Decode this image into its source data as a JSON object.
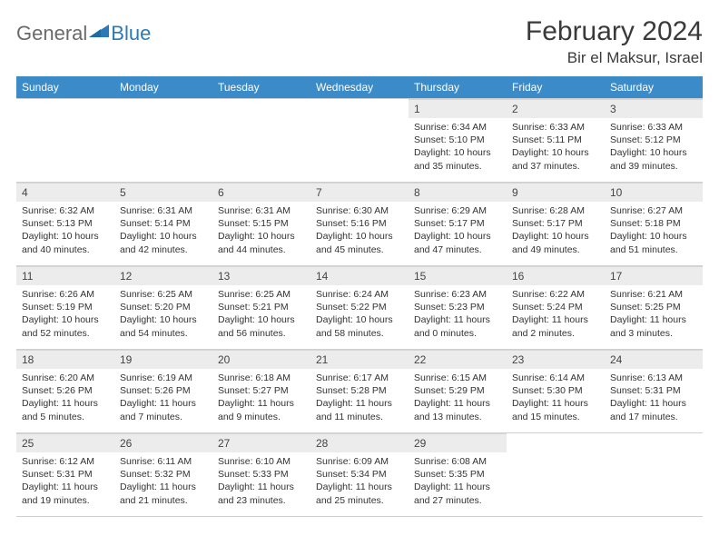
{
  "brand": {
    "part1": "General",
    "part2": "Blue"
  },
  "title": "February 2024",
  "location": "Bir el Maksur, Israel",
  "colors": {
    "header_bg": "#3b8bc8",
    "header_text": "#ffffff",
    "daynum_bg": "#ececec",
    "text": "#333333",
    "brand_gray": "#6a6a6a",
    "brand_blue": "#2a7ab9",
    "title_color": "#3a3a3a",
    "border": "#cfcfcf"
  },
  "typography": {
    "title_fontsize": 30,
    "location_fontsize": 17,
    "dayheader_fontsize": 12,
    "body_fontsize": 10.5
  },
  "day_headers": [
    "Sunday",
    "Monday",
    "Tuesday",
    "Wednesday",
    "Thursday",
    "Friday",
    "Saturday"
  ],
  "weeks": [
    [
      {
        "empty": true
      },
      {
        "empty": true
      },
      {
        "empty": true
      },
      {
        "empty": true
      },
      {
        "n": "1",
        "sunrise": "6:34 AM",
        "sunset": "5:10 PM",
        "daylight": "10 hours and 35 minutes."
      },
      {
        "n": "2",
        "sunrise": "6:33 AM",
        "sunset": "5:11 PM",
        "daylight": "10 hours and 37 minutes."
      },
      {
        "n": "3",
        "sunrise": "6:33 AM",
        "sunset": "5:12 PM",
        "daylight": "10 hours and 39 minutes."
      }
    ],
    [
      {
        "n": "4",
        "sunrise": "6:32 AM",
        "sunset": "5:13 PM",
        "daylight": "10 hours and 40 minutes."
      },
      {
        "n": "5",
        "sunrise": "6:31 AM",
        "sunset": "5:14 PM",
        "daylight": "10 hours and 42 minutes."
      },
      {
        "n": "6",
        "sunrise": "6:31 AM",
        "sunset": "5:15 PM",
        "daylight": "10 hours and 44 minutes."
      },
      {
        "n": "7",
        "sunrise": "6:30 AM",
        "sunset": "5:16 PM",
        "daylight": "10 hours and 45 minutes."
      },
      {
        "n": "8",
        "sunrise": "6:29 AM",
        "sunset": "5:17 PM",
        "daylight": "10 hours and 47 minutes."
      },
      {
        "n": "9",
        "sunrise": "6:28 AM",
        "sunset": "5:17 PM",
        "daylight": "10 hours and 49 minutes."
      },
      {
        "n": "10",
        "sunrise": "6:27 AM",
        "sunset": "5:18 PM",
        "daylight": "10 hours and 51 minutes."
      }
    ],
    [
      {
        "n": "11",
        "sunrise": "6:26 AM",
        "sunset": "5:19 PM",
        "daylight": "10 hours and 52 minutes."
      },
      {
        "n": "12",
        "sunrise": "6:25 AM",
        "sunset": "5:20 PM",
        "daylight": "10 hours and 54 minutes."
      },
      {
        "n": "13",
        "sunrise": "6:25 AM",
        "sunset": "5:21 PM",
        "daylight": "10 hours and 56 minutes."
      },
      {
        "n": "14",
        "sunrise": "6:24 AM",
        "sunset": "5:22 PM",
        "daylight": "10 hours and 58 minutes."
      },
      {
        "n": "15",
        "sunrise": "6:23 AM",
        "sunset": "5:23 PM",
        "daylight": "11 hours and 0 minutes."
      },
      {
        "n": "16",
        "sunrise": "6:22 AM",
        "sunset": "5:24 PM",
        "daylight": "11 hours and 2 minutes."
      },
      {
        "n": "17",
        "sunrise": "6:21 AM",
        "sunset": "5:25 PM",
        "daylight": "11 hours and 3 minutes."
      }
    ],
    [
      {
        "n": "18",
        "sunrise": "6:20 AM",
        "sunset": "5:26 PM",
        "daylight": "11 hours and 5 minutes."
      },
      {
        "n": "19",
        "sunrise": "6:19 AM",
        "sunset": "5:26 PM",
        "daylight": "11 hours and 7 minutes."
      },
      {
        "n": "20",
        "sunrise": "6:18 AM",
        "sunset": "5:27 PM",
        "daylight": "11 hours and 9 minutes."
      },
      {
        "n": "21",
        "sunrise": "6:17 AM",
        "sunset": "5:28 PM",
        "daylight": "11 hours and 11 minutes."
      },
      {
        "n": "22",
        "sunrise": "6:15 AM",
        "sunset": "5:29 PM",
        "daylight": "11 hours and 13 minutes."
      },
      {
        "n": "23",
        "sunrise": "6:14 AM",
        "sunset": "5:30 PM",
        "daylight": "11 hours and 15 minutes."
      },
      {
        "n": "24",
        "sunrise": "6:13 AM",
        "sunset": "5:31 PM",
        "daylight": "11 hours and 17 minutes."
      }
    ],
    [
      {
        "n": "25",
        "sunrise": "6:12 AM",
        "sunset": "5:31 PM",
        "daylight": "11 hours and 19 minutes."
      },
      {
        "n": "26",
        "sunrise": "6:11 AM",
        "sunset": "5:32 PM",
        "daylight": "11 hours and 21 minutes."
      },
      {
        "n": "27",
        "sunrise": "6:10 AM",
        "sunset": "5:33 PM",
        "daylight": "11 hours and 23 minutes."
      },
      {
        "n": "28",
        "sunrise": "6:09 AM",
        "sunset": "5:34 PM",
        "daylight": "11 hours and 25 minutes."
      },
      {
        "n": "29",
        "sunrise": "6:08 AM",
        "sunset": "5:35 PM",
        "daylight": "11 hours and 27 minutes."
      },
      {
        "empty": true
      },
      {
        "empty": true
      }
    ]
  ],
  "labels": {
    "sunrise": "Sunrise:",
    "sunset": "Sunset:",
    "daylight": "Daylight:"
  }
}
